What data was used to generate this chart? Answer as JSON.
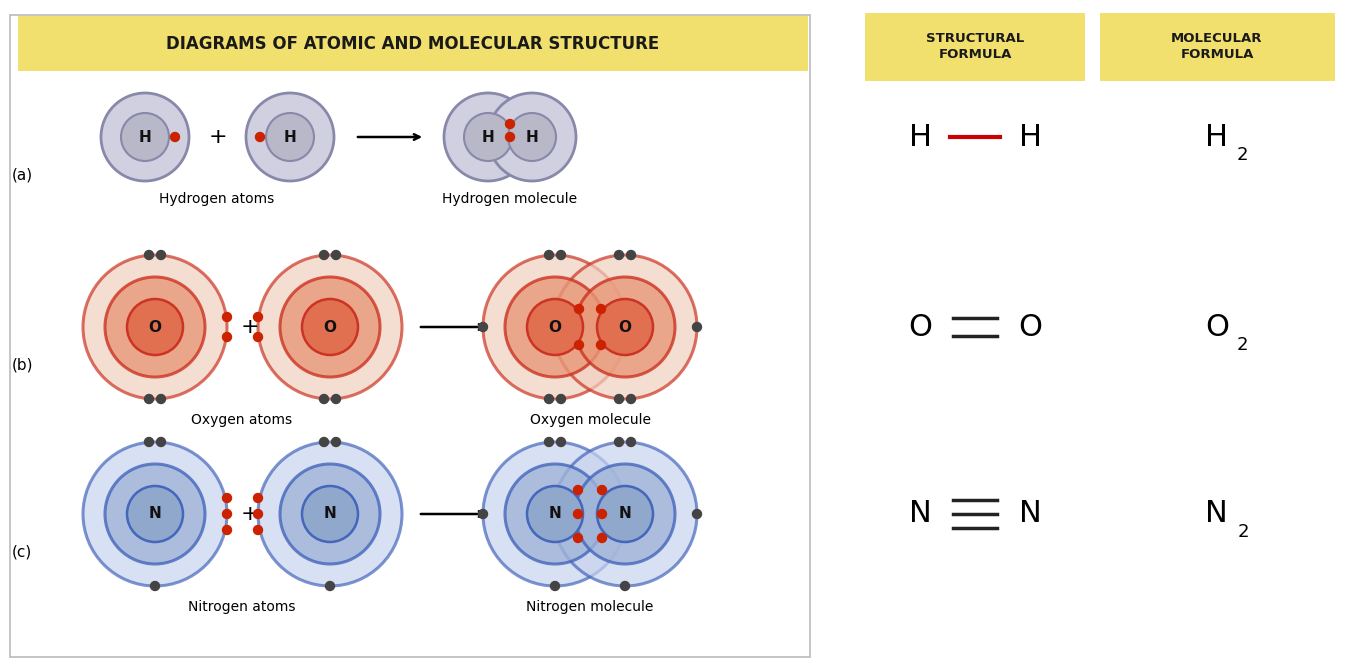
{
  "bg_color": "#ffffff",
  "title_box_color": "#f2e06e",
  "header_box_color": "#f2e06e",
  "title_text": "DIAGRAMS OF ATOMIC AND MOLECULAR STRUCTURE",
  "title_text_color": "#1a1a1a",
  "header1": "STRUCTURAL\nFORMULA",
  "header2": "MOLECULAR\nFORMULA",
  "row_labels": [
    "(a)",
    "(b)",
    "(c)"
  ],
  "atom_labels": [
    "Hydrogen atoms",
    "Oxygen atoms",
    "Nitrogen atoms"
  ],
  "molecule_labels": [
    "Hydrogen molecule",
    "Oxygen molecule",
    "Nitrogen molecule"
  ],
  "h_ring_color": "#8888aa",
  "h_ring_fill": "#d0d0e0",
  "h_nucleus_fill": "#b8b8c8",
  "o_ring_color": "#cc3322",
  "o_ring_fill_outer": "#f0d0c0",
  "o_ring_fill_mid": "#e89878",
  "o_nucleus_fill": "#e07050",
  "n_ring_color": "#4466bb",
  "n_ring_fill_outer": "#c8d4ee",
  "n_ring_fill_mid": "#a0b4d8",
  "n_nucleus_fill": "#90a8cc",
  "electron_color": "#444444",
  "shared_electron_color": "#cc2200",
  "bond_color_h": "#cc0000",
  "bond_color_on": "#222222"
}
